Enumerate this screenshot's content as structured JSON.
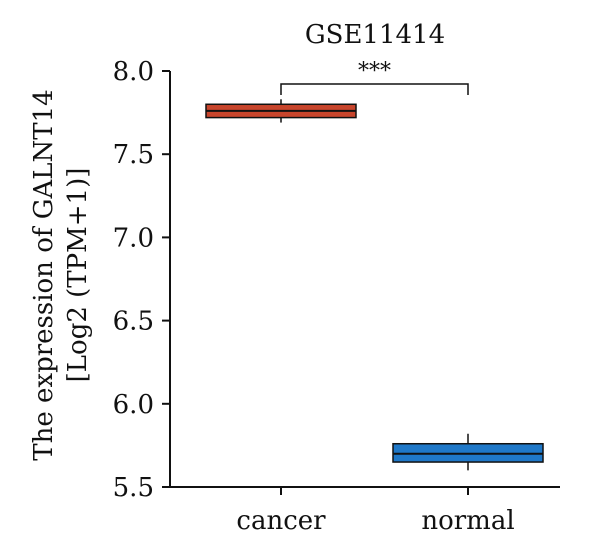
{
  "chart_data": {
    "type": "box",
    "title": "GSE11414",
    "xlabel": "",
    "ylabel_line1": "The expression of GALNT14",
    "ylabel_line2": "[Log2 (TPM+1)]",
    "ylim": [
      5.5,
      8.0
    ],
    "yticks": [
      "8.0",
      "7.5",
      "7.0",
      "6.5",
      "6.0",
      "5.5"
    ],
    "categories": [
      "cancer",
      "normal"
    ],
    "boxes": [
      {
        "category": "cancer",
        "min": 7.69,
        "q1": 7.72,
        "median": 7.76,
        "q3": 7.8,
        "max": 7.83,
        "color": "#c8452c"
      },
      {
        "category": "normal",
        "min": 5.6,
        "q1": 5.65,
        "median": 5.7,
        "q3": 5.76,
        "max": 5.82,
        "color": "#1f78c8"
      }
    ],
    "significance": {
      "label": "***",
      "between": [
        "cancer",
        "normal"
      ]
    }
  }
}
